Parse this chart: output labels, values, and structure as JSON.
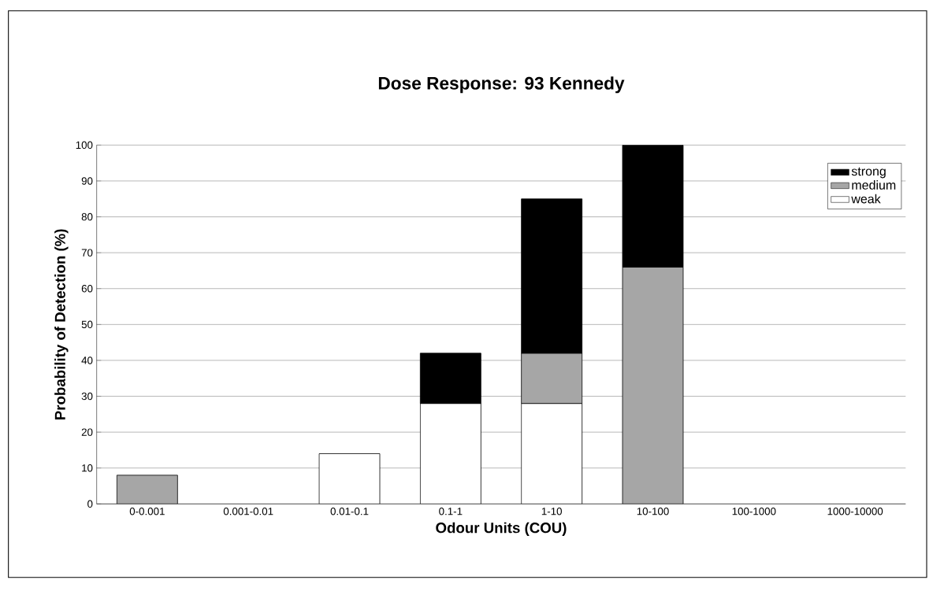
{
  "chart_data": {
    "type": "bar",
    "stacked": true,
    "title": "Dose Response: 93 Kennedy",
    "xlabel": "Odour Units (COU)",
    "ylabel": "Probability of Detection (%)",
    "categories": [
      "0-0.001",
      "0.001-0.01",
      "0.01-0.1",
      "0.1-1",
      "1-10",
      "10-100",
      "100-1000",
      "1000-10000"
    ],
    "series": [
      {
        "name": "weak",
        "color": "#ffffff",
        "values": [
          0,
          0,
          14,
          28,
          28,
          0,
          0,
          0
        ]
      },
      {
        "name": "medium",
        "color": "#a6a6a6",
        "values": [
          8,
          0,
          0,
          0,
          14,
          66,
          0,
          0
        ]
      },
      {
        "name": "strong",
        "color": "#000000",
        "values": [
          0,
          0,
          0,
          14,
          43,
          34,
          0,
          0
        ]
      }
    ],
    "ylim": [
      0,
      100
    ],
    "yticks": [
      0,
      10,
      20,
      30,
      40,
      50,
      60,
      70,
      80,
      90,
      100
    ],
    "grid": "y",
    "legend": "top right"
  }
}
